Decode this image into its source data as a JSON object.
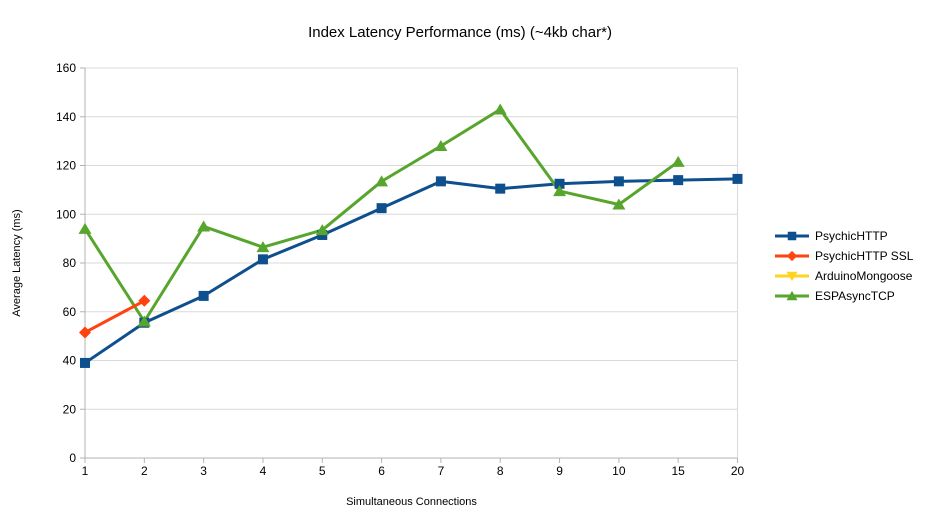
{
  "chart_data": {
    "type": "line",
    "title": "Index Latency Performance (ms) (~4kb char*)",
    "xlabel": "Simultaneous Connections",
    "ylabel": "Average Latency (ms)",
    "categories": [
      "1",
      "2",
      "3",
      "4",
      "5",
      "6",
      "7",
      "8",
      "9",
      "10",
      "15",
      "20"
    ],
    "y_ticks": [
      0,
      20,
      40,
      60,
      80,
      100,
      120,
      140,
      160
    ],
    "ylim": [
      0,
      160
    ],
    "grid": "horizontal",
    "legend_position": "right",
    "colors": {
      "grid": "#d9d9d9",
      "axis": "#b3b3b3",
      "text": "#000000"
    },
    "series": [
      {
        "name": "PsychicHTTP",
        "color": "#0E4F8E",
        "marker": "square",
        "values": [
          39,
          55.5,
          66.5,
          81.5,
          91.5,
          102.5,
          113.5,
          110.5,
          112.5,
          113.5,
          114,
          114.5
        ]
      },
      {
        "name": "PsychicHTTP SSL",
        "color": "#FF420E",
        "marker": "diamond",
        "values": [
          51.5,
          64.5,
          null,
          null,
          null,
          null,
          null,
          null,
          null,
          null,
          null,
          null
        ]
      },
      {
        "name": "ArduinoMongoose",
        "color": "#FFD320",
        "marker": "triangle-down",
        "values": [
          null,
          null,
          null,
          null,
          null,
          null,
          null,
          null,
          null,
          null,
          null,
          null
        ]
      },
      {
        "name": "ESPAsyncTCP",
        "color": "#57A52C",
        "marker": "triangle-up",
        "values": [
          94,
          56,
          95,
          86.5,
          93.5,
          113.5,
          128,
          143,
          109.5,
          104,
          121.5,
          null
        ]
      }
    ]
  }
}
